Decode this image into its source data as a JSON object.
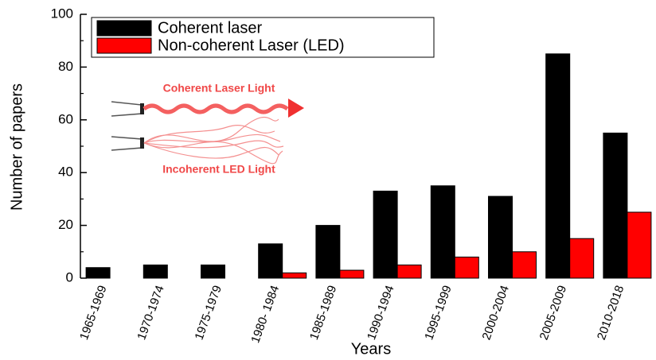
{
  "chart_data": {
    "type": "bar",
    "x_label": "Years",
    "y_label": "Number of papers",
    "categories": [
      "1965-1969",
      "1970-1974",
      "1975-1979",
      "1980- 1984",
      "1985-1989",
      "1990-1994",
      "1995-1999",
      "2000-2004",
      "2005-2009",
      "2010-2018"
    ],
    "series": [
      {
        "name": "Coherent laser",
        "color": "#000000",
        "values": [
          4,
          5,
          5,
          13,
          20,
          33,
          35,
          31,
          85,
          55
        ]
      },
      {
        "name": "Non-coherent Laser (LED)",
        "color": "#ff0000",
        "values": [
          0,
          0,
          0,
          2,
          3,
          5,
          8,
          10,
          15,
          25
        ]
      }
    ],
    "ylim": [
      0,
      100
    ],
    "yticks": [
      0,
      20,
      40,
      60,
      80,
      100
    ],
    "minor_yticks": [
      10,
      30,
      50,
      70,
      90
    ],
    "legend": "top-left",
    "grid": false,
    "annotations": [
      "Coherent Laser Light",
      "Incoherent LED Light"
    ]
  }
}
